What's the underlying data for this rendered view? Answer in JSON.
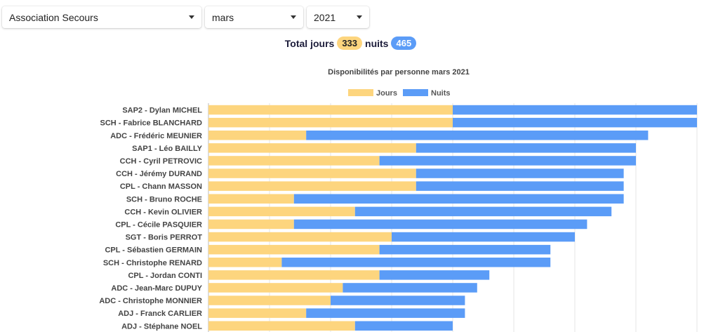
{
  "filters": {
    "association": "Association Secours",
    "month": "mars",
    "year": "2021"
  },
  "totals": {
    "jours_label": "Total jours",
    "jours_value": "333",
    "nuits_label": "nuits",
    "nuits_value": "465"
  },
  "colors": {
    "jours": "#fdd57e",
    "nuits": "#5b9cf7"
  },
  "chart_data": {
    "type": "bar",
    "orientation": "horizontal",
    "stacked": true,
    "title": "Disponibilités par personne mars 2021",
    "legend_position": "top",
    "grid": true,
    "xlim": [
      0,
      40
    ],
    "categories": [
      "SAP2 - Dylan MICHEL",
      "SCH - Fabrice BLANCHARD",
      "ADC - Frédéric MEUNIER",
      "SAP1 - Léo BAILLY",
      "CCH - Cyril PETROVIC",
      "CCH - Jérémy DURAND",
      "CPL - Chann MASSON",
      "SCH - Bruno ROCHE",
      "CCH - Kevin OLIVIER",
      "CPL - Cécile PASQUIER",
      "SGT - Boris PERROT",
      "CPL - Sébastien GERMAIN",
      "SCH - Christophe RENARD",
      "CPL - Jordan CONTI",
      "ADC - Jean-Marc DUPUY",
      "ADC - Christophe MONNIER",
      "ADJ - Franck CARLIER",
      "ADJ - Stéphane NOEL"
    ],
    "series": [
      {
        "name": "Jours",
        "values": [
          20,
          20,
          8,
          17,
          14,
          17,
          17,
          7,
          12,
          7,
          15,
          14,
          6,
          14,
          11,
          10,
          8,
          12
        ]
      },
      {
        "name": "Nuits",
        "values": [
          20,
          20,
          28,
          18,
          21,
          17,
          17,
          27,
          21,
          24,
          15,
          14,
          22,
          9,
          11,
          11,
          13,
          8
        ]
      }
    ]
  }
}
